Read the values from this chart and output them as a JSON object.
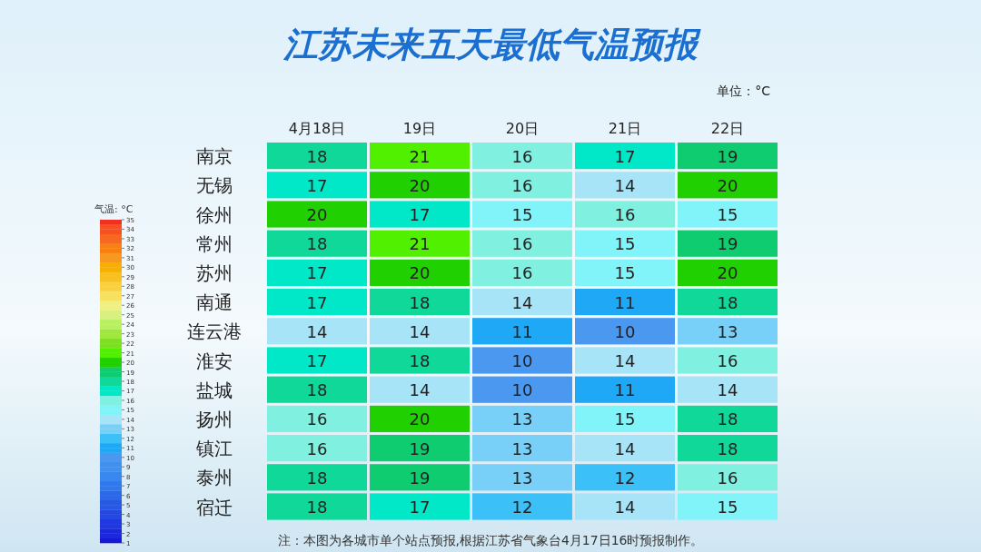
{
  "chart_data": {
    "type": "heatmap",
    "title": "江苏未来五天最低气温预报",
    "categories": [
      "4月18日",
      "19日",
      "20日",
      "21日",
      "22日"
    ],
    "y_categories": [
      "南京",
      "无锡",
      "徐州",
      "常州",
      "苏州",
      "南通",
      "连云港",
      "淮安",
      "盐城",
      "扬州",
      "镇江",
      "泰州",
      "宿迁"
    ],
    "cells": [
      [
        18,
        21,
        16,
        17,
        19
      ],
      [
        17,
        20,
        16,
        14,
        20
      ],
      [
        20,
        17,
        15,
        16,
        15
      ],
      [
        18,
        21,
        16,
        15,
        19
      ],
      [
        17,
        20,
        16,
        15,
        20
      ],
      [
        17,
        18,
        14,
        11,
        18
      ],
      [
        14,
        14,
        11,
        10,
        13
      ],
      [
        17,
        18,
        10,
        14,
        16
      ],
      [
        18,
        14,
        10,
        11,
        14
      ],
      [
        16,
        20,
        13,
        15,
        18
      ],
      [
        16,
        19,
        13,
        14,
        18
      ],
      [
        18,
        19,
        13,
        12,
        16
      ],
      [
        18,
        17,
        12,
        14,
        15
      ]
    ],
    "clabel": "气温: °C",
    "clim": [
      1,
      35
    ],
    "cticks": [
      1,
      2,
      3,
      4,
      5,
      6,
      7,
      8,
      9,
      10,
      11,
      12,
      13,
      14,
      15,
      16,
      17,
      18,
      19,
      20,
      21,
      22,
      23,
      24,
      25,
      26,
      27,
      28,
      29,
      30,
      31,
      32,
      33,
      34,
      35
    ],
    "data_labels": true,
    "annotations": [
      "单位：°C",
      "注：本图为各城市单个站点预报,根据江苏省气象台4月17日16时预报制作。"
    ]
  }
}
